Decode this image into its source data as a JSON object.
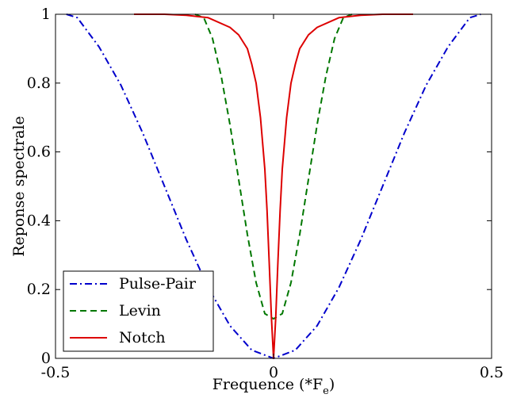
{
  "chart_data": {
    "type": "line",
    "xlabel": "Frequence (*F",
    "xlabel_sub": "e",
    "xlabel_close": ")",
    "ylabel": "Reponse spectrale",
    "xlim": [
      -0.5,
      0.5
    ],
    "ylim": [
      0,
      1
    ],
    "xticks": [
      -0.5,
      0,
      0.5
    ],
    "xtick_labels": [
      "-0.5",
      "0",
      "0.5"
    ],
    "yticks": [
      0,
      0.2,
      0.4,
      0.6,
      0.8,
      1
    ],
    "ytick_labels": [
      "0",
      "0.2",
      "0.4",
      "0.6",
      "0.8",
      "1"
    ],
    "grid": false,
    "legend_position": "bottom-left",
    "series": [
      {
        "name": "Pulse-Pair",
        "color": "#0000cc",
        "dash": "dashdot",
        "x": [
          -0.475,
          -0.45,
          -0.4,
          -0.35,
          -0.3,
          -0.25,
          -0.2,
          -0.15,
          -0.1,
          -0.05,
          0,
          0.05,
          0.1,
          0.15,
          0.2,
          0.25,
          0.3,
          0.35,
          0.4,
          0.45,
          0.475
        ],
        "y": [
          1.0,
          0.99,
          0.905,
          0.794,
          0.655,
          0.5,
          0.345,
          0.206,
          0.095,
          0.024,
          0.0,
          0.024,
          0.095,
          0.206,
          0.345,
          0.5,
          0.655,
          0.794,
          0.905,
          0.99,
          1.0
        ]
      },
      {
        "name": "Levin",
        "color": "#007700",
        "dash": "dashed",
        "x": [
          -0.18,
          -0.16,
          -0.14,
          -0.12,
          -0.1,
          -0.08,
          -0.06,
          -0.04,
          -0.02,
          0,
          0.02,
          0.04,
          0.06,
          0.08,
          0.1,
          0.12,
          0.14,
          0.16,
          0.18
        ],
        "y": [
          1.0,
          0.99,
          0.93,
          0.82,
          0.68,
          0.52,
          0.36,
          0.22,
          0.13,
          0.115,
          0.13,
          0.22,
          0.36,
          0.52,
          0.68,
          0.82,
          0.93,
          0.99,
          1.0
        ]
      },
      {
        "name": "Notch",
        "color": "#dd0000",
        "dash": "solid",
        "x": [
          -0.32,
          -0.25,
          -0.2,
          -0.15,
          -0.1,
          -0.08,
          -0.06,
          -0.05,
          -0.04,
          -0.03,
          -0.02,
          -0.015,
          -0.01,
          -0.005,
          0,
          0.005,
          0.01,
          0.015,
          0.02,
          0.03,
          0.04,
          0.05,
          0.06,
          0.08,
          0.1,
          0.15,
          0.2,
          0.25,
          0.32
        ],
        "y": [
          1.0,
          1.0,
          0.997,
          0.99,
          0.962,
          0.94,
          0.9,
          0.855,
          0.8,
          0.7,
          0.55,
          0.43,
          0.28,
          0.12,
          0.0,
          0.12,
          0.28,
          0.43,
          0.55,
          0.7,
          0.8,
          0.855,
          0.9,
          0.94,
          0.962,
          0.99,
          0.997,
          1.0,
          1.0
        ]
      }
    ]
  }
}
